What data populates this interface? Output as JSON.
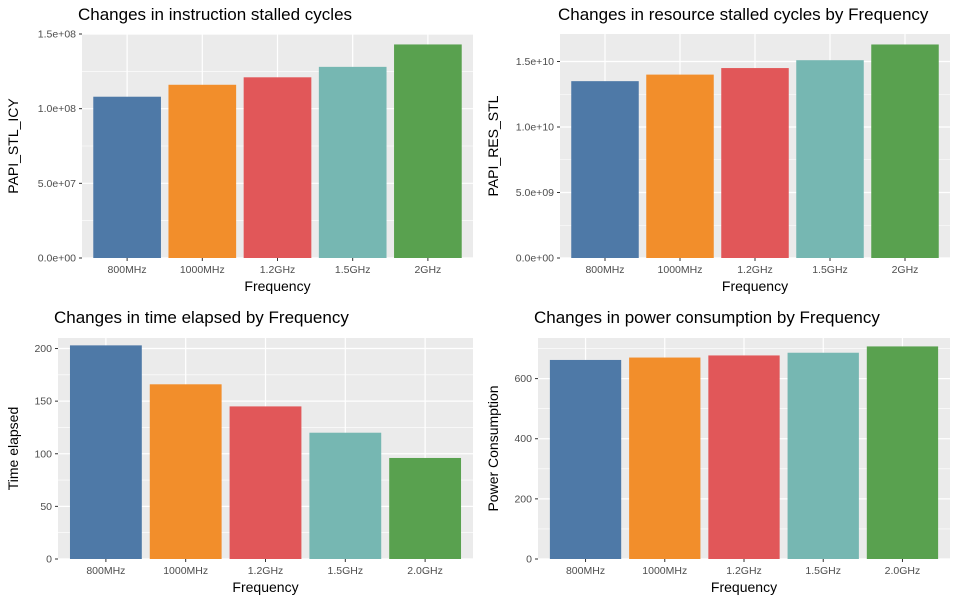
{
  "colors": {
    "panel_bg": "#ebebeb",
    "grid_major": "#ffffff",
    "bars": [
      "#4e79a7",
      "#f28e2b",
      "#e15759",
      "#76b7b2",
      "#59a14f"
    ],
    "axis_text": "#4d4d4d",
    "title_text": "#000000"
  },
  "chart_data": [
    {
      "type": "bar",
      "title": "Changes in instruction stalled cycles",
      "xlabel": "Frequency",
      "ylabel": "PAPI_STL_ICY",
      "categories": [
        "800MHz",
        "1000MHz",
        "1.2GHz",
        "1.5GHz",
        "2GHz"
      ],
      "values": [
        108000000,
        116000000,
        121000000,
        128000000,
        143000000
      ],
      "ylim": [
        0,
        150000000
      ],
      "yticks": [
        0,
        50000000,
        100000000,
        150000000
      ],
      "ytick_labels": [
        "0.0e+00",
        "5.0e+07",
        "1.0e+08",
        "1.5e+08"
      ],
      "grid": true,
      "legend": "none"
    },
    {
      "type": "bar",
      "title": "Changes in resource stalled cycles by Frequency",
      "xlabel": "Frequency",
      "ylabel": "PAPI_RES_STL",
      "categories": [
        "800MHz",
        "1000MHz",
        "1.2GHz",
        "1.5GHz",
        "2GHz"
      ],
      "values": [
        13500000000,
        14000000000,
        14500000000,
        15100000000,
        16300000000
      ],
      "ylim": [
        0,
        17100000000
      ],
      "yticks": [
        0,
        5000000000,
        10000000000,
        15000000000
      ],
      "ytick_labels": [
        "0.0e+00",
        "5.0e+09",
        "1.0e+10",
        "1.5e+10"
      ],
      "grid": true,
      "legend": "none"
    },
    {
      "type": "bar",
      "title": "Changes in time elapsed by Frequency",
      "xlabel": "Frequency",
      "ylabel": "Time elapsed",
      "categories": [
        "800MHz",
        "1000MHz",
        "1.2GHz",
        "1.5GHz",
        "2.0GHz"
      ],
      "values": [
        203,
        166,
        145,
        120,
        96
      ],
      "ylim": [
        0,
        210
      ],
      "yticks": [
        0,
        50,
        100,
        150,
        200
      ],
      "ytick_labels": [
        "0",
        "50",
        "100",
        "150",
        "200"
      ],
      "grid": true,
      "legend": "none"
    },
    {
      "type": "bar",
      "title": "Changes in power consumption by Frequency",
      "xlabel": "Frequency",
      "ylabel": "Power Consumption",
      "categories": [
        "800MHz",
        "1000MHz",
        "1.2GHz",
        "1.5GHz",
        "2.0GHz"
      ],
      "values": [
        662,
        670,
        677,
        686,
        707
      ],
      "ylim": [
        0,
        735
      ],
      "yticks": [
        0,
        200,
        400,
        600
      ],
      "ytick_labels": [
        "0",
        "200",
        "400",
        "600"
      ],
      "grid": true,
      "legend": "none"
    }
  ]
}
